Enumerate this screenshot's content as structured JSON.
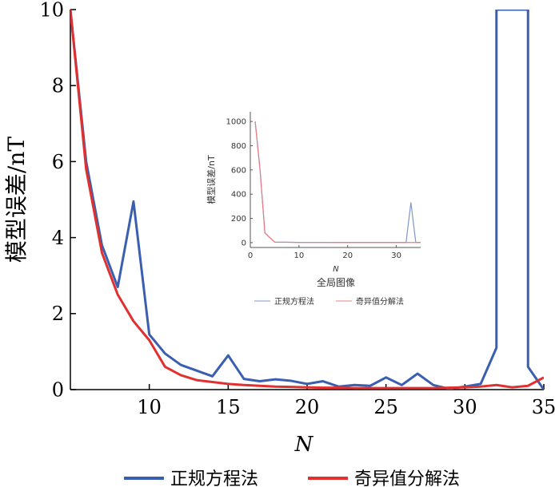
{
  "chart_data": [
    {
      "type": "line",
      "title": "",
      "xlabel": "N",
      "ylabel": "模型误差/nT",
      "xlim": [
        5,
        35
      ],
      "ylim": [
        0,
        10
      ],
      "xticks": [
        10,
        15,
        20,
        25,
        30,
        35
      ],
      "yticks": [
        0,
        2,
        4,
        6,
        8,
        10
      ],
      "grid": false,
      "legend_position": "bottom",
      "series": [
        {
          "name": "正规方程法",
          "color": "#3a5fb0",
          "x": [
            5,
            6,
            7,
            8,
            9,
            10,
            11,
            12,
            13,
            14,
            15,
            16,
            17,
            18,
            19,
            20,
            21,
            22,
            23,
            24,
            25,
            26,
            27,
            28,
            29,
            30,
            31,
            32,
            32,
            34,
            34,
            35
          ],
          "y": [
            10,
            6.0,
            3.8,
            2.7,
            4.95,
            1.45,
            0.95,
            0.65,
            0.5,
            0.35,
            0.9,
            0.28,
            0.22,
            0.27,
            0.23,
            0.15,
            0.22,
            0.08,
            0.12,
            0.1,
            0.32,
            0.12,
            0.42,
            0.12,
            0.02,
            0.08,
            0.15,
            1.1,
            10,
            10,
            0.6,
            0
          ]
        },
        {
          "name": "奇异值分解法",
          "color": "#e03030",
          "x": [
            5,
            6,
            7,
            8,
            9,
            10,
            11,
            12,
            13,
            14,
            15,
            16,
            17,
            18,
            19,
            20,
            21,
            22,
            23,
            24,
            25,
            26,
            27,
            28,
            29,
            30,
            31,
            32,
            33,
            34,
            35
          ],
          "y": [
            10,
            5.8,
            3.6,
            2.5,
            1.8,
            1.3,
            0.6,
            0.38,
            0.25,
            0.2,
            0.15,
            0.12,
            0.1,
            0.08,
            0.07,
            0.06,
            0.05,
            0.05,
            0.04,
            0.04,
            0.04,
            0.04,
            0.04,
            0.04,
            0.05,
            0.06,
            0.08,
            0.12,
            0.06,
            0.1,
            0.32
          ]
        }
      ]
    },
    {
      "type": "line",
      "title": "全局图像",
      "xlabel": "N",
      "ylabel": "模型误差/nT",
      "xlim": [
        0,
        35
      ],
      "ylim": [
        -40,
        1080
      ],
      "xticks": [
        0,
        10,
        20,
        30
      ],
      "yticks": [
        0,
        200,
        400,
        600,
        800,
        1000
      ],
      "grid": false,
      "legend_position": "bottom",
      "series": [
        {
          "name": "正规方程法",
          "color": "#7f97c8",
          "x": [
            1,
            2,
            3,
            5,
            10,
            20,
            30,
            32,
            33,
            34,
            35
          ],
          "y": [
            1000,
            600,
            80,
            5,
            2,
            2,
            2,
            2,
            330,
            2,
            2
          ]
        },
        {
          "name": "奇异值分解法",
          "color": "#e87c84",
          "x": [
            1,
            2,
            3,
            5,
            10,
            20,
            30,
            35
          ],
          "y": [
            1000,
            600,
            80,
            4,
            2,
            1,
            1,
            1
          ]
        }
      ]
    }
  ]
}
